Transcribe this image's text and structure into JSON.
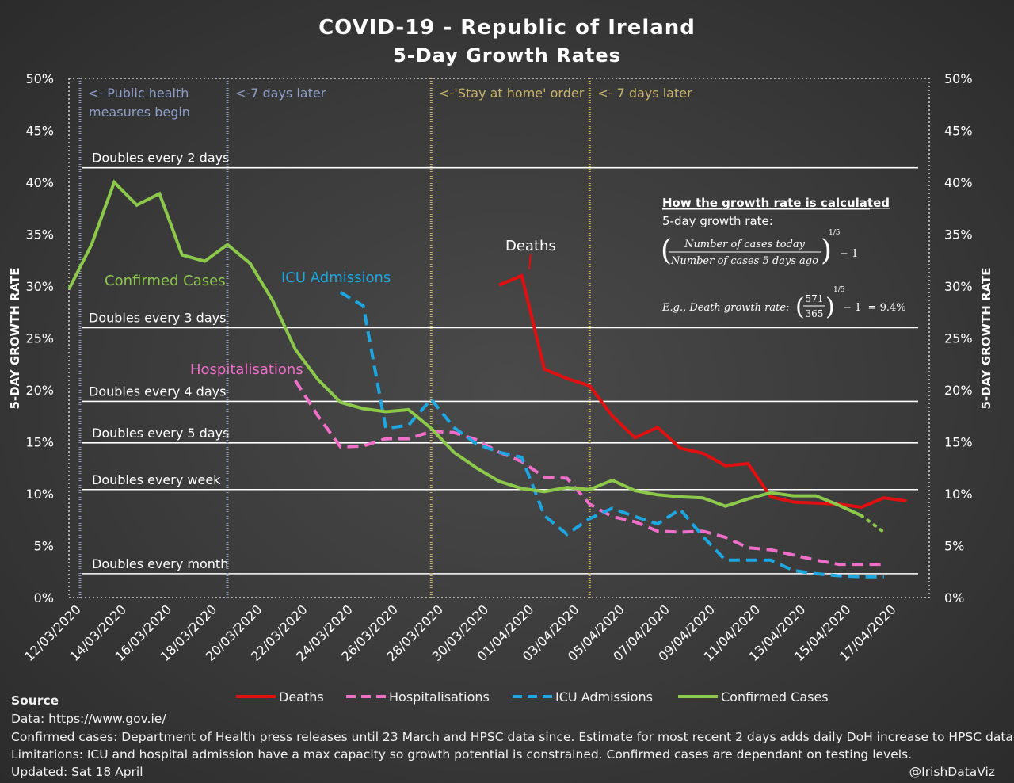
{
  "chart_data": {
    "type": "line",
    "title": "COVID-19 - Republic of Ireland",
    "subtitle": "5-Day Growth Rates",
    "ylabel": "5-DAY GROWTH RATE",
    "ylim": [
      0,
      50
    ],
    "yticks": [
      "0%",
      "5%",
      "10%",
      "15%",
      "20%",
      "25%",
      "30%",
      "35%",
      "40%",
      "45%",
      "50%"
    ],
    "xlim": [
      "2020-03-12",
      "2020-04-19"
    ],
    "xtick_labels": [
      "12/03/2020",
      "14/03/2020",
      "16/03/2020",
      "18/03/2020",
      "20/03/2020",
      "22/03/2020",
      "24/03/2020",
      "26/03/2020",
      "28/03/2020",
      "30/03/2020",
      "01/04/2020",
      "03/04/2020",
      "05/04/2020",
      "07/04/2020",
      "09/04/2020",
      "11/04/2020",
      "13/04/2020",
      "15/04/2020",
      "17/04/2020"
    ],
    "grid": false,
    "legend_position": "bottom",
    "reference_lines": [
      {
        "label": "Doubles every 2 days",
        "value": 41.4
      },
      {
        "label": "Doubles every 3 days",
        "value": 26.0
      },
      {
        "label": "Doubles every 4 days",
        "value": 18.9
      },
      {
        "label": "Doubles every 5 days",
        "value": 14.9
      },
      {
        "label": "Doubles every week",
        "value": 10.4
      },
      {
        "label": "Doubles every month",
        "value": 2.3
      }
    ],
    "event_lines": [
      {
        "label": "<- Public health measures begin",
        "date": "2020-03-12",
        "color": "#8e9ec7"
      },
      {
        "label": "<-7 days later",
        "date": "2020-03-19",
        "color": "#8e9ec7"
      },
      {
        "label": "<-'Stay at home' order",
        "date": "2020-03-28",
        "color": "#c9b46a"
      },
      {
        "label": "<- 7 days later",
        "date": "2020-04-04",
        "color": "#c9b46a"
      }
    ],
    "series": [
      {
        "name": "Deaths",
        "color": "#e01010",
        "style": "solid",
        "x": [
          "2020-03-31",
          "2020-04-01",
          "2020-04-02",
          "2020-04-03",
          "2020-04-04",
          "2020-04-05",
          "2020-04-06",
          "2020-04-07",
          "2020-04-08",
          "2020-04-09",
          "2020-04-10",
          "2020-04-11",
          "2020-04-12",
          "2020-04-13",
          "2020-04-14",
          "2020-04-15",
          "2020-04-16",
          "2020-04-17",
          "2020-04-18"
        ],
        "values": [
          30.1,
          31.0,
          22.0,
          21.1,
          20.4,
          17.5,
          15.4,
          16.4,
          14.4,
          13.9,
          12.7,
          12.9,
          9.7,
          9.2,
          9.1,
          9.0,
          8.7,
          9.6,
          9.3
        ]
      },
      {
        "name": "Hospitalisations",
        "color": "#ee6ec8",
        "style": "dashed",
        "x": [
          "2020-03-22",
          "2020-03-23",
          "2020-03-24",
          "2020-03-25",
          "2020-03-26",
          "2020-03-27",
          "2020-03-28",
          "2020-03-29",
          "2020-03-30",
          "2020-03-31",
          "2020-04-01",
          "2020-04-02",
          "2020-04-03",
          "2020-04-04",
          "2020-04-05",
          "2020-04-06",
          "2020-04-07",
          "2020-04-08",
          "2020-04-09",
          "2020-04-10",
          "2020-04-11",
          "2020-04-12",
          "2020-04-13",
          "2020-04-14",
          "2020-04-15",
          "2020-04-16",
          "2020-04-17"
        ],
        "values": [
          20.9,
          17.5,
          14.5,
          14.6,
          15.3,
          15.3,
          16.0,
          15.9,
          15.2,
          14.0,
          13.1,
          11.6,
          11.5,
          9.0,
          7.8,
          7.3,
          6.4,
          6.3,
          6.4,
          5.8,
          4.8,
          4.6,
          4.1,
          3.6,
          3.2,
          3.2,
          3.2
        ]
      },
      {
        "name": "ICU Admissions",
        "color": "#1ea6e0",
        "style": "dashed",
        "x": [
          "2020-03-24",
          "2020-03-25",
          "2020-03-26",
          "2020-03-27",
          "2020-03-28",
          "2020-03-29",
          "2020-03-30",
          "2020-03-31",
          "2020-04-01",
          "2020-04-02",
          "2020-04-03",
          "2020-04-04",
          "2020-04-05",
          "2020-04-06",
          "2020-04-07",
          "2020-04-08",
          "2020-04-09",
          "2020-04-10",
          "2020-04-11",
          "2020-04-12",
          "2020-04-13",
          "2020-04-14",
          "2020-04-15",
          "2020-04-16",
          "2020-04-17"
        ],
        "values": [
          29.4,
          28.1,
          16.3,
          16.6,
          19.1,
          16.4,
          14.8,
          14.0,
          13.5,
          7.9,
          6.1,
          7.6,
          8.6,
          7.8,
          7.1,
          8.5,
          5.9,
          3.6,
          3.6,
          3.6,
          2.6,
          2.3,
          2.1,
          2.0,
          2.0
        ]
      },
      {
        "name": "Confirmed Cases",
        "color": "#8cc84a",
        "style": "solid",
        "x": [
          "2020-03-12",
          "2020-03-13",
          "2020-03-14",
          "2020-03-15",
          "2020-03-16",
          "2020-03-17",
          "2020-03-18",
          "2020-03-19",
          "2020-03-20",
          "2020-03-21",
          "2020-03-22",
          "2020-03-23",
          "2020-03-24",
          "2020-03-25",
          "2020-03-26",
          "2020-03-27",
          "2020-03-28",
          "2020-03-29",
          "2020-03-30",
          "2020-03-31",
          "2020-04-01",
          "2020-04-02",
          "2020-04-03",
          "2020-04-04",
          "2020-04-05",
          "2020-04-06",
          "2020-04-07",
          "2020-04-08",
          "2020-04-09",
          "2020-04-10",
          "2020-04-11",
          "2020-04-12",
          "2020-04-13",
          "2020-04-14",
          "2020-04-15",
          "2020-04-16",
          "2020-04-17"
        ],
        "values": [
          29.7,
          34.0,
          40.0,
          37.8,
          38.9,
          33.0,
          32.4,
          34.0,
          32.2,
          28.6,
          23.9,
          21.0,
          18.8,
          18.2,
          17.9,
          18.1,
          16.3,
          14.0,
          12.5,
          11.2,
          10.5,
          10.2,
          10.6,
          10.4,
          11.3,
          10.3,
          9.9,
          9.7,
          9.6,
          8.8,
          9.5,
          10.1,
          9.8,
          9.8,
          8.9,
          7.9,
          6.3
        ],
        "estimated_from": "2020-04-16"
      }
    ],
    "series_labels": {
      "confirmed": "Confirmed Cases",
      "icu": "ICU Admissions",
      "hospitalisations": "Hospitalisations",
      "deaths": "Deaths"
    },
    "calc_box": {
      "heading": "How the growth rate is calculated",
      "line1": "5-day growth rate:",
      "numerator": "Number of cases today",
      "denominator": "Number of cases 5 days ago",
      "exponent": "1/5",
      "minus_one": "− 1",
      "example_prefix": "E.g., Death growth rate:",
      "example_num": "571",
      "example_den": "365",
      "example_result": "− 1  = 9.4%"
    }
  },
  "footer": {
    "heading": "Source",
    "data": "Data: https://www.gov.ie/",
    "confirmed": "Confirmed cases: Department of Health press releases until 23 March and HPSC data since. Estimate for most recent 2 days adds daily DoH increase to HPSC data.",
    "limitations": "Limitations: ICU and hospital admission have a max capacity so growth potential is constrained. Confirmed cases are dependant on testing levels.",
    "updated": "Updated: Sat 18 April",
    "credit": "@IrishDataViz"
  }
}
